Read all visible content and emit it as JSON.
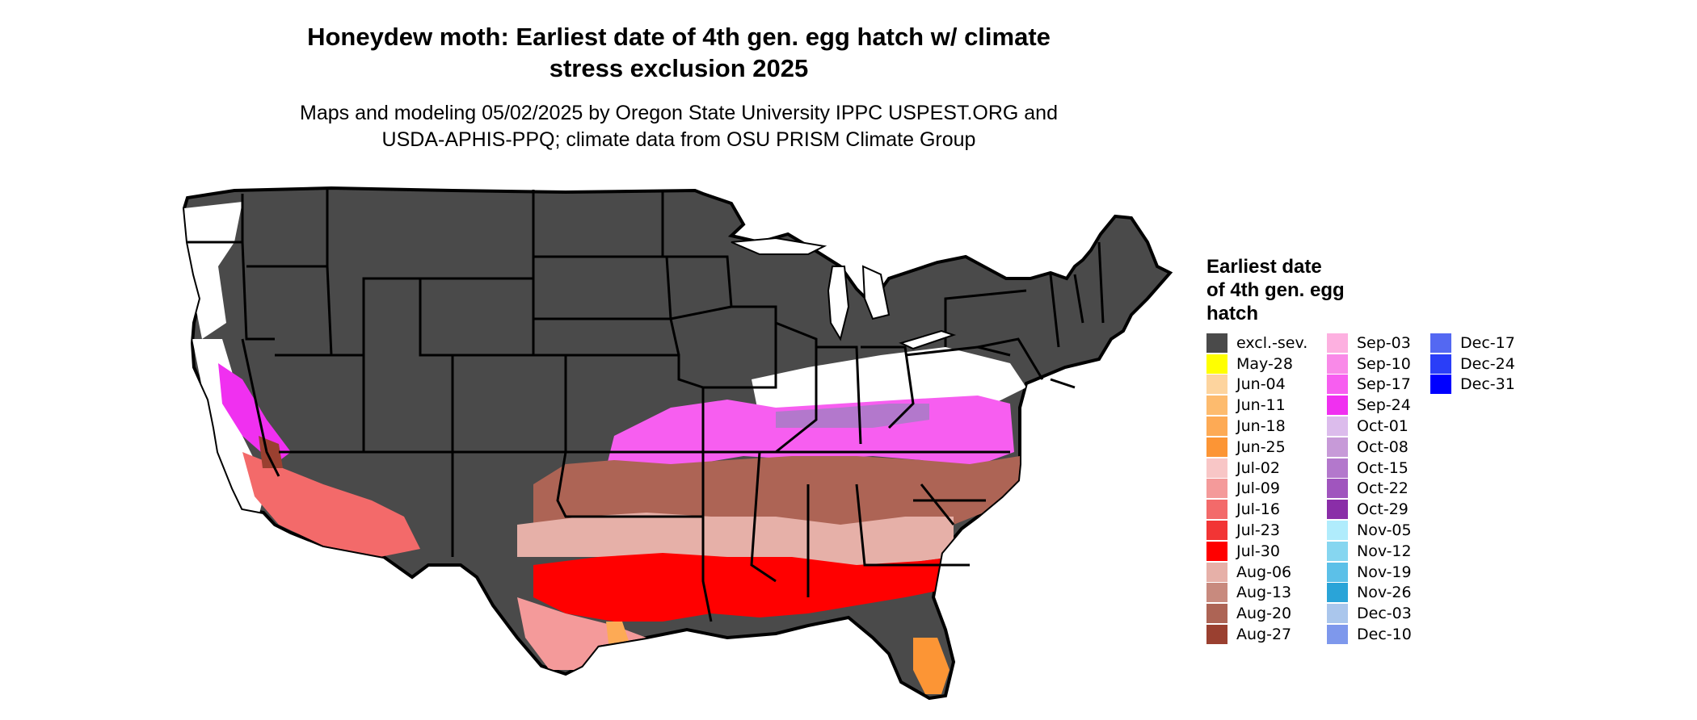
{
  "title": "Honeydew moth: Earliest date of 4th gen. egg hatch w/ climate stress exclusion 2025",
  "title_lines": [
    "Honeydew moth: Earliest date of 4th gen. egg hatch w/ climate",
    "stress exclusion 2025"
  ],
  "subtitle_lines": [
    "Maps and modeling 05/02/2025 by Oregon State University IPPC USPEST.ORG and",
    "USDA-APHIS-PPQ; climate data from OSU PRISM Climate Group"
  ],
  "legend": {
    "title_lines": [
      "Earliest date",
      "of 4th gen. egg",
      "hatch"
    ],
    "columns": [
      [
        {
          "label": "excl.-sev.",
          "color": "#4a4a4a"
        },
        {
          "label": "May-28",
          "color": "#ffff00"
        },
        {
          "label": "Jun-04",
          "color": "#fdd49e"
        },
        {
          "label": "Jun-11",
          "color": "#fdbb6e"
        },
        {
          "label": "Jun-18",
          "color": "#fdaa55"
        },
        {
          "label": "Jun-25",
          "color": "#fc9535"
        },
        {
          "label": "Jul-02",
          "color": "#f8c6c6"
        },
        {
          "label": "Jul-09",
          "color": "#f49a9a"
        },
        {
          "label": "Jul-16",
          "color": "#f36a6a"
        },
        {
          "label": "Jul-23",
          "color": "#f23535"
        },
        {
          "label": "Jul-30",
          "color": "#ff0000"
        },
        {
          "label": "Aug-06",
          "color": "#e6b0a8"
        },
        {
          "label": "Aug-13",
          "color": "#c88a7e"
        },
        {
          "label": "Aug-20",
          "color": "#ad6455"
        },
        {
          "label": "Aug-27",
          "color": "#9a4030"
        }
      ],
      [
        {
          "label": "Sep-03",
          "color": "#fdb0e0"
        },
        {
          "label": "Sep-10",
          "color": "#f98ae8"
        },
        {
          "label": "Sep-17",
          "color": "#f75ef0"
        },
        {
          "label": "Sep-24",
          "color": "#f030f0"
        },
        {
          "label": "Oct-01",
          "color": "#dcbcec"
        },
        {
          "label": "Oct-08",
          "color": "#c79ad8"
        },
        {
          "label": "Oct-15",
          "color": "#b378cc"
        },
        {
          "label": "Oct-22",
          "color": "#a055be"
        },
        {
          "label": "Oct-29",
          "color": "#8a2ea8"
        },
        {
          "label": "Nov-05",
          "color": "#b0ecfc"
        },
        {
          "label": "Nov-12",
          "color": "#86d6f0"
        },
        {
          "label": "Nov-19",
          "color": "#5cc0e8"
        },
        {
          "label": "Nov-26",
          "color": "#2aa4d8"
        },
        {
          "label": "Dec-03",
          "color": "#aac6ec"
        },
        {
          "label": "Dec-10",
          "color": "#7e98ec"
        }
      ],
      [
        {
          "label": "Dec-17",
          "color": "#5468f2"
        },
        {
          "label": "Dec-24",
          "color": "#2a3ef8"
        },
        {
          "label": "Dec-31",
          "color": "#0000ff"
        }
      ]
    ]
  },
  "map": {
    "region": "Contiguous United States",
    "zones": {
      "excluded": "#4a4a4a",
      "outline": "#000000"
    }
  }
}
